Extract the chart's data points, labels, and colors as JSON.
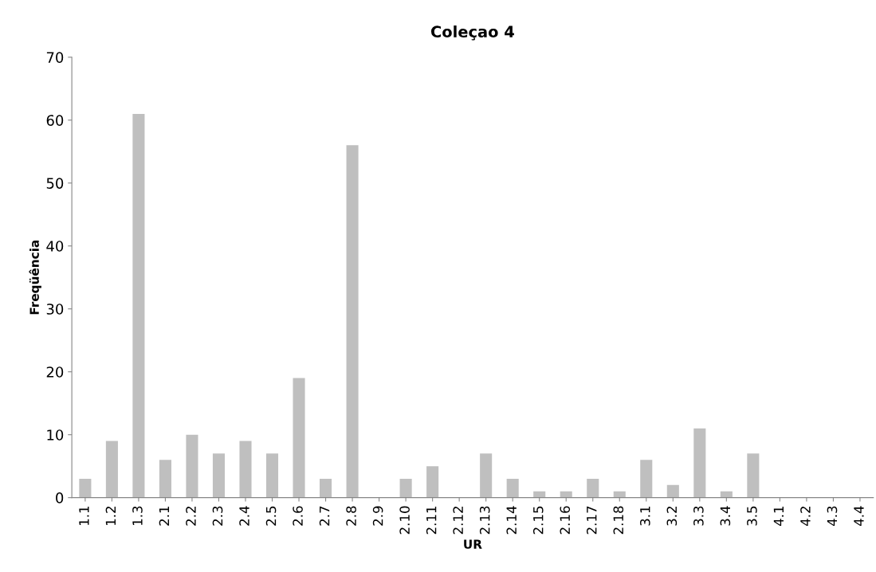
{
  "chart_data": {
    "type": "bar",
    "title": "Coleçao 4",
    "xlabel": "UR",
    "ylabel": "Freqüência",
    "categories": [
      "1.1",
      "1.2",
      "1.3",
      "2.1",
      "2.2",
      "2.3",
      "2.4",
      "2.5",
      "2.6",
      "2.7",
      "2.8",
      "2.9",
      "2.10",
      "2.11",
      "2.12",
      "2.13",
      "2.14",
      "2.15",
      "2.16",
      "2.17",
      "2.18",
      "3.1",
      "3.2",
      "3.3",
      "3.4",
      "3.5",
      "4.1",
      "4.2",
      "4.3",
      "4.4"
    ],
    "values": [
      3,
      9,
      61,
      6,
      10,
      7,
      9,
      7,
      19,
      3,
      56,
      0,
      3,
      5,
      0,
      7,
      3,
      1,
      1,
      3,
      1,
      6,
      2,
      11,
      1,
      7,
      0,
      0,
      0,
      0
    ],
    "color": "#bfbfbf",
    "ylim": [
      0,
      70
    ],
    "yticks": [
      0,
      10,
      20,
      30,
      40,
      50,
      60,
      70
    ],
    "grid": false,
    "legend": false
  }
}
